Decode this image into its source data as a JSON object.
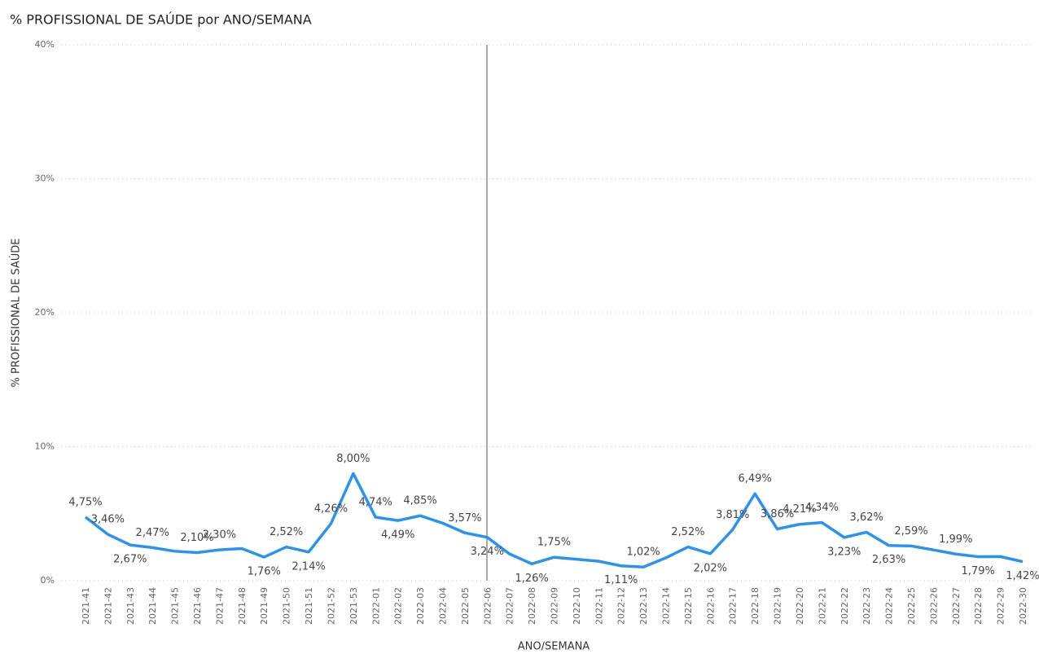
{
  "chart_data": {
    "type": "line",
    "title": "% PROFISSIONAL DE SAÚDE por ANO/SEMANA",
    "x_label": "ANO/SEMANA",
    "y_label": "% PROFISSIONAL DE SAÚDE",
    "categories": [
      "2021-41",
      "2021-42",
      "2021-43",
      "2021-44",
      "2021-45",
      "2021-46",
      "2021-47",
      "2021-48",
      "2021-49",
      "2021-50",
      "2021-51",
      "2021-52",
      "2021-53",
      "2022-01",
      "2022-02",
      "2022-03",
      "2022-04",
      "2022-05",
      "2022-06",
      "2022-07",
      "2022-08",
      "2022-09",
      "2022-10",
      "2022-11",
      "2022-12",
      "2022-13",
      "2022-14",
      "2022-15",
      "2022-16",
      "2022-17",
      "2022-18",
      "2022-19",
      "2022-20",
      "2022-21",
      "2022-22",
      "2022-23",
      "2022-24",
      "2022-25",
      "2022-26",
      "2022-27",
      "2022-28",
      "2022-29",
      "2022-30"
    ],
    "series": [
      {
        "name": "% PROFISSIONAL DE SAÚDE",
        "color": "#2a93f2",
        "values": [
          4.75,
          3.46,
          2.67,
          2.47,
          2.2,
          2.1,
          2.3,
          2.4,
          1.76,
          2.52,
          2.14,
          4.26,
          8.0,
          4.74,
          4.49,
          4.85,
          4.3,
          3.57,
          3.24,
          2.0,
          1.26,
          1.75,
          1.6,
          1.45,
          1.11,
          1.02,
          1.7,
          2.52,
          2.02,
          3.81,
          6.49,
          3.86,
          4.21,
          4.34,
          3.23,
          3.62,
          2.63,
          2.59,
          2.3,
          1.99,
          1.79,
          1.8,
          1.42
        ],
        "value_labels": [
          "4,75%",
          "3,46%",
          "2,67%",
          "2,47%",
          null,
          "2,10%",
          "2,30%",
          null,
          "1,76%",
          "2,52%",
          "2,14%",
          "4,26%",
          "8,00%",
          "4,74%",
          "4,49%",
          "4,85%",
          null,
          "3,57%",
          "3,24%",
          null,
          "1,26%",
          "1,75%",
          null,
          null,
          "1,11%",
          "1,02%",
          null,
          "2,52%",
          "2,02%",
          "3,81%",
          "6,49%",
          "3,86%",
          "4,21%",
          "4,34%",
          "3,23%",
          "3,62%",
          "2,63%",
          "2,59%",
          null,
          "1,99%",
          "1,79%",
          null,
          "1,42%"
        ]
      }
    ],
    "ylim": [
      0,
      40
    ],
    "yticks": [
      {
        "value": 0,
        "label": "0%"
      },
      {
        "value": 10,
        "label": "10%"
      },
      {
        "value": 20,
        "label": "20%"
      },
      {
        "value": 30,
        "label": "30%"
      },
      {
        "value": 40,
        "label": "40%"
      }
    ],
    "grid": true
  }
}
